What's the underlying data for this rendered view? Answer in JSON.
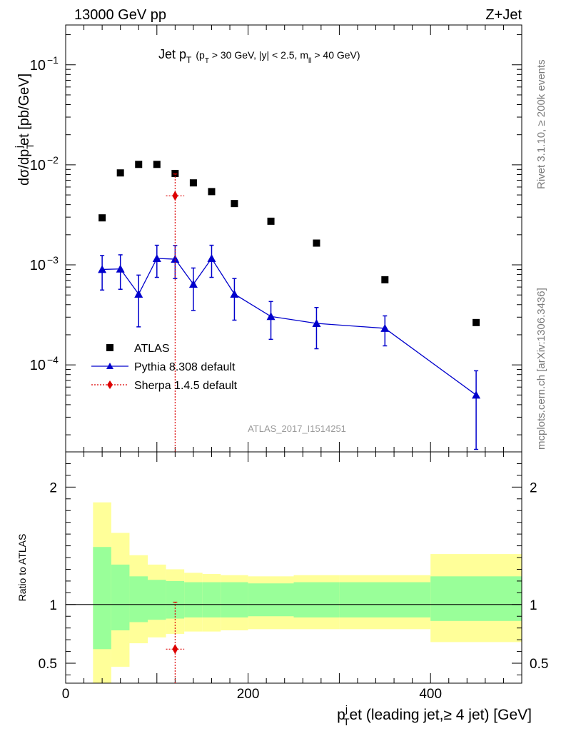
{
  "header": {
    "left": "13000 GeV pp",
    "right": "Z+Jet"
  },
  "side_labels": {
    "rivet": "Rivet 3.1.10, ≥ 200k events",
    "mcplots": "mcplots.cern.ch [arXiv:1306.3436]"
  },
  "chart_data": [
    {
      "type": "scatter",
      "panel": "main",
      "title_main": "Jet p",
      "title_sub": "T",
      "title_cuts": "(p",
      "title_cuts_sub": "T",
      "title_cuts_rest": " > 30 GeV, |y| < 2.5, m",
      "title_cuts_sub2": "ll",
      "title_cuts_end": " > 40 GeV)",
      "ylabel": "dσ/dp",
      "ylabel_sub": "T",
      "ylabel_sup": "j",
      "ylabel_rest": "et [pb/GeV]",
      "yscale": "log",
      "ylim": [
        1.35e-05,
        0.25
      ],
      "xlim": [
        0,
        500
      ],
      "yticks": [
        {
          "value": 0.1,
          "base": "10",
          "exp": "−1"
        },
        {
          "value": 0.01,
          "base": "10",
          "exp": "−2"
        },
        {
          "value": 0.001,
          "base": "10",
          "exp": "−3"
        },
        {
          "value": 0.0001,
          "base": "10",
          "exp": "−4"
        }
      ],
      "watermark": "ATLAS_2017_I1514251",
      "legend": {
        "position": "bottom-left",
        "entries": [
          {
            "label": "ATLAS",
            "series": "atlas"
          },
          {
            "label": "Pythia 8.308 default",
            "series": "pythia"
          },
          {
            "label": "Sherpa 1.4.5 default",
            "series": "sherpa"
          }
        ]
      },
      "series": [
        {
          "name": "ATLAS",
          "key": "atlas",
          "marker": "square",
          "color": "#000000",
          "x": [
            40,
            60,
            80,
            100,
            120,
            140,
            160,
            185,
            225,
            275,
            350,
            450
          ],
          "y": [
            0.00295,
            0.0083,
            0.0101,
            0.0101,
            0.0082,
            0.0066,
            0.0054,
            0.0041,
            0.00273,
            0.00165,
            0.00071,
            0.000265
          ]
        },
        {
          "name": "Pythia 8.308 default",
          "key": "pythia",
          "marker": "triangle",
          "color": "#0000cc",
          "x": [
            40,
            60,
            80,
            100,
            120,
            140,
            160,
            185,
            225,
            275,
            350,
            450
          ],
          "y": [
            0.0009,
            0.00091,
            0.00051,
            0.00116,
            0.00114,
            0.00064,
            0.00116,
            0.00051,
            0.000305,
            0.00026,
            0.000232,
            5e-05
          ],
          "yerr_low": [
            0.00034,
            0.00034,
            0.00027,
            0.00041,
            0.00041,
            0.00029,
            0.00041,
            0.00023,
            0.000125,
            0.000115,
            7.7e-05,
            3.57e-05
          ],
          "yerr_high": [
            0.00034,
            0.00035,
            0.00028,
            0.00041,
            0.00042,
            0.00029,
            0.00041,
            0.00022,
            0.000125,
            0.000115,
            7.7e-05,
            3.73e-05
          ]
        },
        {
          "name": "Sherpa 1.4.5 default",
          "key": "sherpa",
          "marker": "diamond",
          "color": "#dd0000",
          "x": [
            120
          ],
          "xerr": [
            10
          ],
          "y": [
            0.0049
          ],
          "yerr_low": [
            0.0049
          ],
          "yerr_high": [
            0.0032
          ]
        }
      ]
    },
    {
      "type": "area",
      "panel": "ratio",
      "ylabel": "Ratio to ATLAS",
      "xlabel": "p",
      "xlabel_sup": "j",
      "xlabel_sub": "T",
      "xlabel_rest": "et (leading jet,≥ 4 jet) [GeV]",
      "xlim": [
        0,
        500
      ],
      "ylim": [
        0.33,
        2.3
      ],
      "xticks": [
        0,
        200,
        400
      ],
      "yticks": [
        0.5,
        1,
        2
      ],
      "ytick_labels": [
        "0.5",
        "1",
        "2"
      ],
      "bins": [
        {
          "lo": 30,
          "hi": 50,
          "y1": [
            0.62,
            1.49
          ],
          "y2": [
            0.33,
            1.87
          ]
        },
        {
          "lo": 50,
          "hi": 70,
          "y1": [
            0.78,
            1.34
          ],
          "y2": [
            0.47,
            1.61
          ]
        },
        {
          "lo": 70,
          "hi": 90,
          "y1": [
            0.85,
            1.24
          ],
          "y2": [
            0.67,
            1.42
          ]
        },
        {
          "lo": 90,
          "hi": 110,
          "y1": [
            0.87,
            1.21
          ],
          "y2": [
            0.72,
            1.34
          ]
        },
        {
          "lo": 110,
          "hi": 130,
          "y1": [
            0.88,
            1.2
          ],
          "y2": [
            0.75,
            1.3
          ]
        },
        {
          "lo": 130,
          "hi": 150,
          "y1": [
            0.89,
            1.19
          ],
          "y2": [
            0.77,
            1.27
          ]
        },
        {
          "lo": 150,
          "hi": 170,
          "y1": [
            0.89,
            1.19
          ],
          "y2": [
            0.77,
            1.26
          ]
        },
        {
          "lo": 170,
          "hi": 200,
          "y1": [
            0.89,
            1.19
          ],
          "y2": [
            0.78,
            1.25
          ]
        },
        {
          "lo": 200,
          "hi": 250,
          "y1": [
            0.9,
            1.18
          ],
          "y2": [
            0.79,
            1.24
          ]
        },
        {
          "lo": 250,
          "hi": 300,
          "y1": [
            0.89,
            1.19
          ],
          "y2": [
            0.79,
            1.25
          ]
        },
        {
          "lo": 300,
          "hi": 400,
          "y1": [
            0.89,
            1.19
          ],
          "y2": [
            0.79,
            1.25
          ]
        },
        {
          "lo": 400,
          "hi": 500,
          "y1": [
            0.86,
            1.24
          ],
          "y2": [
            0.68,
            1.43
          ]
        }
      ],
      "reference_line": 1,
      "series": [
        {
          "name": "Sherpa 1.4.5 default",
          "key": "sherpa",
          "marker": "diamond",
          "color": "#dd0000",
          "x": [
            120
          ],
          "xerr": [
            10
          ],
          "y": [
            0.62
          ],
          "yerr_low": [
            0.62
          ],
          "yerr_high": [
            0.4
          ]
        }
      ],
      "colors": {
        "inner_band": "#99ff99",
        "outer_band": "#ffff99"
      }
    }
  ]
}
